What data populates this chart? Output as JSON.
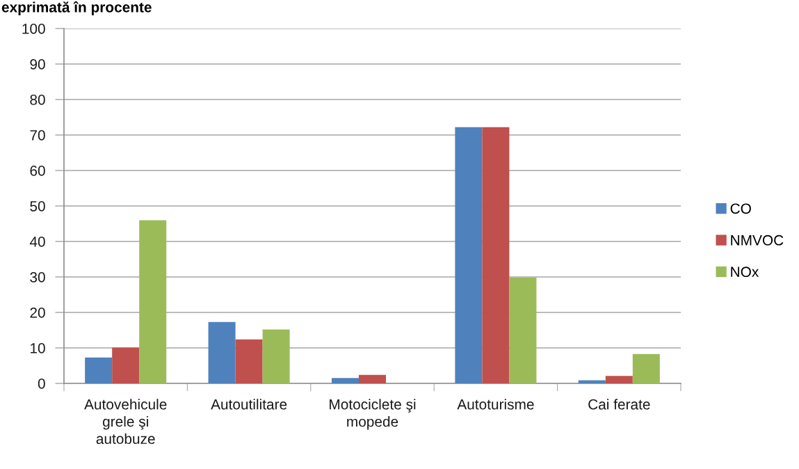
{
  "chart_data": {
    "type": "bar",
    "title": "exprimată în procente",
    "categories": [
      "Autovehicule\ngrele şi\nautobuze",
      "Autoutilitare",
      "Motociclete şi\nmopede",
      "Autoturisme",
      "Cai ferate"
    ],
    "series": [
      {
        "name": "CO",
        "color": "#4f81bd",
        "values": [
          7.3,
          17.3,
          1.5,
          72.2,
          0.9
        ]
      },
      {
        "name": "NMVOC",
        "color": "#c0504d",
        "values": [
          10.1,
          12.4,
          2.4,
          72.2,
          2.1
        ]
      },
      {
        "name": "NOx",
        "color": "#9bbb59",
        "values": [
          46.0,
          15.2,
          0,
          29.8,
          8.3
        ]
      }
    ],
    "ylim": [
      0,
      100
    ],
    "yticks": [
      0,
      10,
      20,
      30,
      40,
      50,
      60,
      70,
      80,
      90,
      100
    ],
    "grid": "y",
    "legend": "right"
  }
}
